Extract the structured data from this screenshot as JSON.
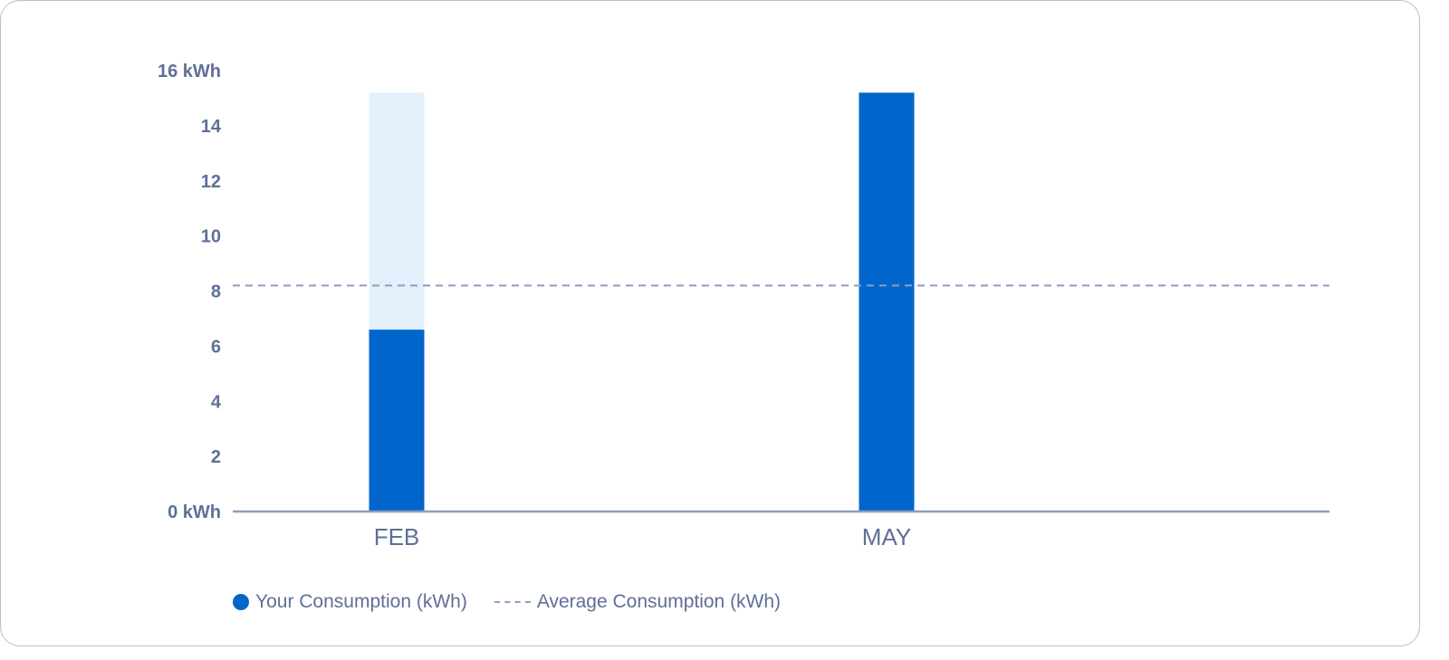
{
  "chart_data": {
    "type": "bar",
    "categories": [
      "FEB",
      "MAY"
    ],
    "series": [
      {
        "name": "Your Consumption (kWh)",
        "values": [
          6.6,
          15.2
        ],
        "color": "#0066cc"
      }
    ],
    "background_bars": {
      "values": [
        15.2,
        null
      ],
      "color": "#e3f0fc"
    },
    "reference_line": {
      "name": "Average Consumption (kWh)",
      "value": 8.2,
      "color": "#8e9dc2",
      "style": "dashed"
    },
    "ylim": [
      0,
      16
    ],
    "yticks": [
      0,
      2,
      4,
      6,
      8,
      10,
      12,
      14,
      16
    ],
    "ytick_labels": [
      "0 kWh",
      "2",
      "4",
      "6",
      "8",
      "10",
      "12",
      "14",
      "16 kWh"
    ],
    "xlabel": "",
    "ylabel": "",
    "grid": false,
    "legend_position": "bottom-left"
  },
  "legend": {
    "items": [
      {
        "label": "Your Consumption (kWh)",
        "marker": "dot",
        "color": "#0066cc"
      },
      {
        "label": "Average Consumption (kWh)",
        "marker": "dashed-line",
        "color": "#8e9dc2"
      }
    ]
  },
  "colors": {
    "axis": "#8e9dc2",
    "tick_text": "#5f6f97"
  }
}
